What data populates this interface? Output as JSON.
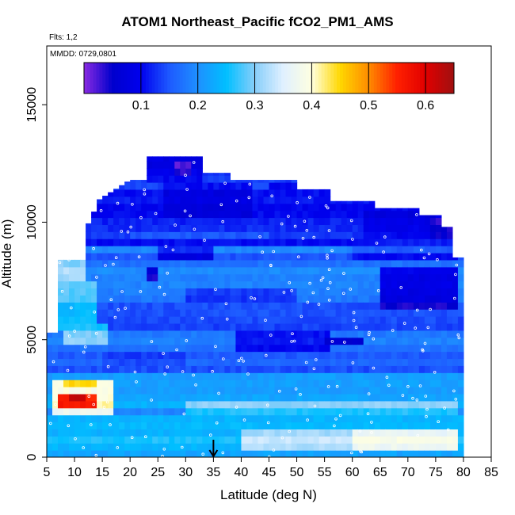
{
  "chart_data": {
    "type": "heatmap",
    "title": "ATOM1 Northeast_Pacific fCO2_PM1_AMS",
    "flights_label": "Flts: 1,2",
    "date_label": "MMDD: 0729,0801",
    "xlabel": "Latitude (deg N)",
    "ylabel": "Altitude (m)",
    "xlim": [
      5,
      85
    ],
    "ylim": [
      0,
      17500
    ],
    "x_ticks": [
      "5",
      "10",
      "15",
      "20",
      "25",
      "30",
      "35",
      "40",
      "45",
      "50",
      "55",
      "60",
      "65",
      "70",
      "75",
      "80",
      "85"
    ],
    "y_ticks": [
      "0",
      "5000",
      "10000",
      "15000"
    ],
    "colorbar": {
      "range": [
        0,
        0.65
      ],
      "ticks": [
        "0.1",
        "0.2",
        "0.3",
        "0.4",
        "0.5",
        "0.6"
      ],
      "colors": [
        "#8a2be2",
        "#0000cd",
        "#0000ee",
        "#1e5aff",
        "#1e90ff",
        "#00bfff",
        "#87cefa",
        "#e0f0ff",
        "#ffffe0",
        "#ffd700",
        "#ff8c00",
        "#ff2000",
        "#e00000",
        "#a01010"
      ]
    },
    "marker": {
      "latitude": 35,
      "symbol": "arrow"
    },
    "background_value": 0.2,
    "patches": [
      {
        "lat": [
          5,
          12
        ],
        "alt": [
          7500,
          8500
        ],
        "value": 0.3
      },
      {
        "lat": [
          5,
          14
        ],
        "alt": [
          5500,
          7500
        ],
        "value": 0.27
      },
      {
        "lat": [
          8,
          16
        ],
        "alt": [
          4700,
          5600
        ],
        "value": 0.28
      },
      {
        "lat": [
          6,
          17
        ],
        "alt": [
          1800,
          3200
        ],
        "value": 0.4
      },
      {
        "lat": [
          7,
          14
        ],
        "alt": [
          2200,
          2800
        ],
        "value": 0.55
      },
      {
        "lat": [
          9,
          12
        ],
        "alt": [
          2300,
          2700
        ],
        "value": 0.62
      },
      {
        "lat": [
          8,
          14
        ],
        "alt": [
          2900,
          3200
        ],
        "value": 0.45
      },
      {
        "lat": [
          40,
          79
        ],
        "alt": [
          200,
          1200
        ],
        "value": 0.32
      },
      {
        "lat": [
          60,
          79
        ],
        "alt": [
          200,
          1100
        ],
        "value": 0.37
      },
      {
        "lat": [
          30,
          79
        ],
        "alt": [
          1800,
          2400
        ],
        "value": 0.29
      },
      {
        "lat": [
          20,
          45
        ],
        "alt": [
          9400,
          9700
        ],
        "value": 0.14
      },
      {
        "lat": [
          26,
          42
        ],
        "alt": [
          10300,
          11800
        ],
        "value": 0.09
      },
      {
        "lat": [
          23,
          33
        ],
        "alt": [
          11700,
          12800
        ],
        "value": 0.09
      },
      {
        "lat": [
          28,
          31
        ],
        "alt": [
          12100,
          12500
        ],
        "value": 0.03
      },
      {
        "lat": [
          45,
          63
        ],
        "alt": [
          11400,
          11800
        ],
        "value": 0.08
      },
      {
        "lat": [
          62,
          75
        ],
        "alt": [
          9400,
          10500
        ],
        "value": 0.09
      },
      {
        "lat": [
          65,
          79
        ],
        "alt": [
          6200,
          8000
        ],
        "value": 0.07
      },
      {
        "lat": [
          39,
          56
        ],
        "alt": [
          4600,
          5300
        ],
        "value": 0.09
      },
      {
        "lat": [
          55,
          62
        ],
        "alt": [
          4800,
          5200
        ],
        "value": 0.03
      },
      {
        "lat": [
          25,
          35
        ],
        "alt": [
          8400,
          9100
        ],
        "value": 0.1
      },
      {
        "lat": [
          23,
          25
        ],
        "alt": [
          7600,
          8100
        ],
        "value": 0.03
      },
      {
        "lat": [
          30,
          50
        ],
        "alt": [
          6600,
          7200
        ],
        "value": 0.12
      },
      {
        "lat": [
          15,
          30
        ],
        "alt": [
          3900,
          4400
        ],
        "value": 0.14
      },
      {
        "lat": [
          60,
          79
        ],
        "alt": [
          8500,
          9400
        ],
        "value": 0.13
      },
      {
        "lat": [
          74,
          79
        ],
        "alt": [
          9400,
          10100
        ],
        "value": 0.04
      }
    ]
  }
}
